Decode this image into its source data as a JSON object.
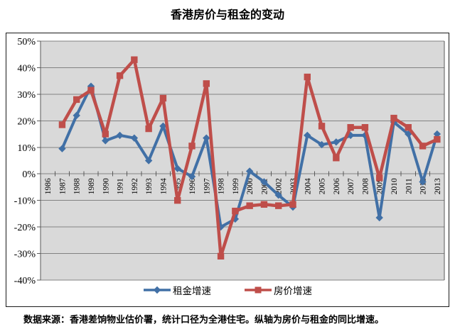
{
  "title": "香港房价与租金的变动",
  "caption": "数据来源：香港差饷物业估价署，统计口径为全港住宅。纵轴为房价与租金的同比增速。",
  "chart_data": {
    "type": "line",
    "title": "香港房价与租金的变动",
    "categories": [
      "1986",
      "1987",
      "1988",
      "1989",
      "1990",
      "1991",
      "1992",
      "1993",
      "1994",
      "1995",
      "1996",
      "1997",
      "1998",
      "1999",
      "2000",
      "2001",
      "2002",
      "2003",
      "2004",
      "2005",
      "2006",
      "2007",
      "2008",
      "2009",
      "2010",
      "2011",
      "2012",
      "2013"
    ],
    "series": [
      {
        "name": "租金增速",
        "marker": "diamond",
        "color": "#4170a6",
        "values": [
          null,
          9.5,
          22,
          33,
          12.5,
          14.5,
          13.5,
          5,
          18,
          2,
          -1,
          13.5,
          -20,
          -17,
          1,
          -3,
          -8,
          -12.5,
          14.5,
          11,
          12,
          14.5,
          14.5,
          -16.5,
          19.5,
          15,
          -3,
          15
        ]
      },
      {
        "name": "房价增速",
        "marker": "square",
        "color": "#bf4e4a",
        "values": [
          null,
          18.5,
          28,
          31.5,
          15,
          37,
          43,
          17,
          28.5,
          -10,
          10.5,
          34,
          -31,
          -14,
          -12,
          -11.5,
          -12,
          -11.5,
          36.5,
          18,
          6,
          17.5,
          17.5,
          -1.5,
          21,
          17.5,
          10.5,
          13
        ]
      }
    ],
    "ylim": [
      -40,
      50
    ],
    "ytick_step": 10,
    "yticklabels": [
      "50%",
      "40%",
      "30%",
      "20%",
      "10%",
      "0%",
      "-10%",
      "-20%",
      "-30%",
      "-40%"
    ],
    "ytick_format": "percent",
    "xlabel": "",
    "ylabel": "",
    "grid": true,
    "legend_position": "bottom-center",
    "plot_bg": "#d9d9d9",
    "grid_color": "#828282",
    "axis_color": "#595959"
  }
}
